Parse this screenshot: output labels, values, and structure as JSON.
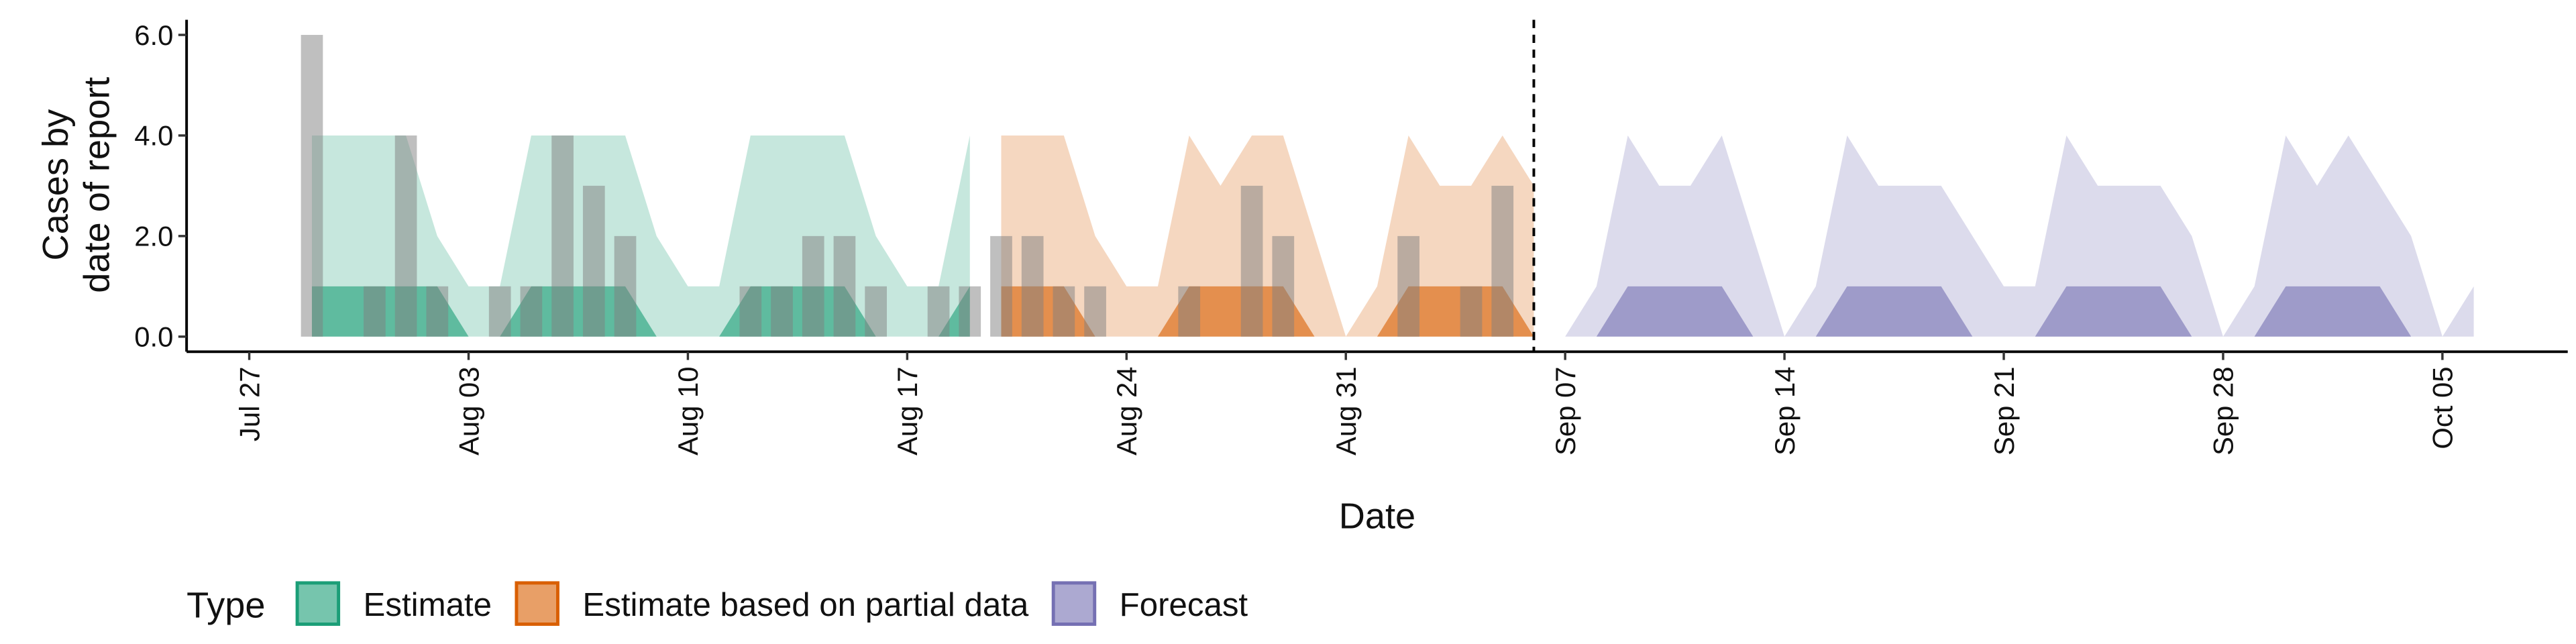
{
  "chart_data": {
    "type": "ribbon",
    "x_label": "Date",
    "y_label": [
      "Cases by",
      "date of report"
    ],
    "legend_title": "Type",
    "xlim": [
      "Jul 25",
      "Oct 09"
    ],
    "xticks": [
      "Jul 27",
      "Aug 03",
      "Aug 10",
      "Aug 17",
      "Aug 24",
      "Aug 31",
      "Sep 07",
      "Sep 14",
      "Sep 21",
      "Sep 28",
      "Oct 05"
    ],
    "ylim": [
      -0.3,
      6.3
    ],
    "yticks": [
      {
        "value": 0,
        "label": "0.0"
      },
      {
        "value": 2,
        "label": "2.0"
      },
      {
        "value": 4,
        "label": "4.0"
      },
      {
        "value": 6,
        "label": "6.0"
      }
    ],
    "vline": "Sep 06",
    "observed": {
      "color": "#808080",
      "x": [
        "Jul 29",
        "Jul 31",
        "Aug 01",
        "Aug 02",
        "Aug 04",
        "Aug 05",
        "Aug 06",
        "Aug 07",
        "Aug 08",
        "Aug 12",
        "Aug 13",
        "Aug 14",
        "Aug 15",
        "Aug 16",
        "Aug 18",
        "Aug 19",
        "Aug 20",
        "Aug 21",
        "Aug 22",
        "Aug 23",
        "Aug 26",
        "Aug 28",
        "Aug 29",
        "Sep 02",
        "Sep 04",
        "Sep 05"
      ],
      "values": [
        6,
        1,
        4,
        1,
        1,
        1,
        4,
        3,
        2,
        1,
        1,
        2,
        2,
        1,
        1,
        1,
        2,
        2,
        1,
        1,
        1,
        3,
        2,
        2,
        1,
        3
      ]
    },
    "series": [
      {
        "name": "Estimate",
        "color": "#1b9e77",
        "x": [
          "Jul 29",
          "Jul 30",
          "Jul 31",
          "Aug 01",
          "Aug 02",
          "Aug 03",
          "Aug 04",
          "Aug 05",
          "Aug 06",
          "Aug 07",
          "Aug 08",
          "Aug 09",
          "Aug 10",
          "Aug 11",
          "Aug 12",
          "Aug 13",
          "Aug 14",
          "Aug 15",
          "Aug 16",
          "Aug 17",
          "Aug 18",
          "Aug 19"
        ],
        "lower_90": [
          0,
          0,
          0,
          0,
          0,
          0,
          0,
          0,
          0,
          0,
          0,
          0,
          0,
          0,
          0,
          0,
          0,
          0,
          0,
          0,
          0,
          0
        ],
        "upper_90": [
          4,
          4,
          4,
          4,
          2,
          1,
          1,
          4,
          4,
          4,
          4,
          2,
          1,
          1,
          4,
          4,
          4,
          4,
          2,
          1,
          1,
          4
        ],
        "lower_50": [
          0,
          0,
          0,
          0,
          0,
          0,
          0,
          0,
          0,
          0,
          0,
          0,
          0,
          0,
          0,
          0,
          0,
          0,
          0,
          0,
          0,
          0
        ],
        "upper_50": [
          1,
          1,
          1,
          1,
          1,
          0,
          0,
          1,
          1,
          1,
          1,
          0,
          0,
          0,
          1,
          1,
          1,
          1,
          0,
          0,
          0,
          1
        ]
      },
      {
        "name": "Estimate based on partial data",
        "color": "#d95f02",
        "x": [
          "Aug 20",
          "Aug 21",
          "Aug 22",
          "Aug 23",
          "Aug 24",
          "Aug 25",
          "Aug 26",
          "Aug 27",
          "Aug 28",
          "Aug 29",
          "Aug 30",
          "Aug 31",
          "Sep 01",
          "Sep 02",
          "Sep 03",
          "Sep 04",
          "Sep 05",
          "Sep 06"
        ],
        "lower_90": [
          0,
          0,
          0,
          0,
          0,
          0,
          0,
          0,
          0,
          0,
          0,
          0,
          0,
          0,
          0,
          0,
          0,
          0
        ],
        "upper_90": [
          4,
          4,
          4,
          2,
          1,
          1,
          4,
          3,
          4,
          4,
          2,
          0,
          1,
          4,
          3,
          3,
          4,
          3
        ],
        "lower_50": [
          0,
          0,
          0,
          0,
          0,
          0,
          0,
          0,
          0,
          0,
          0,
          0,
          0,
          0,
          0,
          0,
          0,
          0
        ],
        "upper_50": [
          1,
          1,
          1,
          0,
          0,
          0,
          1,
          1,
          1,
          1,
          0,
          0,
          0,
          1,
          1,
          1,
          1,
          0
        ]
      },
      {
        "name": "Forecast",
        "color": "#7570b3",
        "x": [
          "Sep 07",
          "Sep 08",
          "Sep 09",
          "Sep 10",
          "Sep 11",
          "Sep 12",
          "Sep 13",
          "Sep 14",
          "Sep 15",
          "Sep 16",
          "Sep 17",
          "Sep 18",
          "Sep 19",
          "Sep 20",
          "Sep 21",
          "Sep 22",
          "Sep 23",
          "Sep 24",
          "Sep 25",
          "Sep 26",
          "Sep 27",
          "Sep 28",
          "Sep 29",
          "Sep 30",
          "Oct 01",
          "Oct 02",
          "Oct 03",
          "Oct 04",
          "Oct 05",
          "Oct 06"
        ],
        "lower_90": [
          0,
          0,
          0,
          0,
          0,
          0,
          0,
          0,
          0,
          0,
          0,
          0,
          0,
          0,
          0,
          0,
          0,
          0,
          0,
          0,
          0,
          0,
          0,
          0,
          0,
          0,
          0,
          0,
          0,
          0
        ],
        "upper_90": [
          0,
          1,
          4,
          3,
          3,
          4,
          2,
          0,
          1,
          4,
          3,
          3,
          3,
          2,
          1,
          1,
          4,
          3,
          3,
          3,
          2,
          0,
          1,
          4,
          3,
          4,
          3,
          2,
          0,
          1
        ],
        "lower_50": [
          0,
          0,
          0,
          0,
          0,
          0,
          0,
          0,
          0,
          0,
          0,
          0,
          0,
          0,
          0,
          0,
          0,
          0,
          0,
          0,
          0,
          0,
          0,
          0,
          0,
          0,
          0,
          0,
          0,
          0
        ],
        "upper_50": [
          0,
          0,
          1,
          1,
          1,
          1,
          0,
          0,
          0,
          1,
          1,
          1,
          1,
          0,
          0,
          0,
          1,
          1,
          1,
          1,
          0,
          0,
          0,
          1,
          1,
          1,
          1,
          0,
          0,
          0
        ]
      }
    ]
  }
}
